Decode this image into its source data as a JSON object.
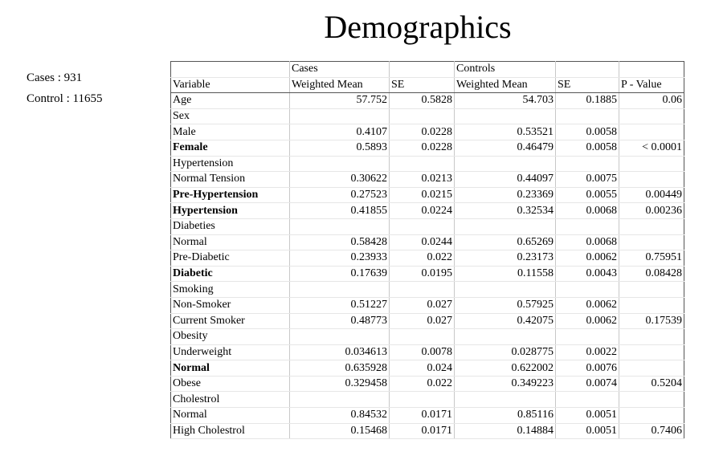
{
  "title": "Demographics",
  "counts": {
    "cases": "Cases : 931",
    "control": "Control : 11655"
  },
  "table": {
    "group_header": [
      "",
      "Cases",
      "",
      "Controls",
      "",
      ""
    ],
    "columns": [
      "Variable",
      "Weighted Mean",
      "SE",
      "Weighted Mean",
      "SE",
      "P - Value"
    ],
    "rows": [
      {
        "variable": "Age",
        "bold": false,
        "cells": [
          "57.752",
          "0.5828",
          "54.703",
          "0.1885",
          "0.06"
        ]
      },
      {
        "variable": "Sex",
        "bold": false,
        "cells": [
          "",
          "",
          "",
          "",
          ""
        ]
      },
      {
        "variable": "Male",
        "bold": false,
        "cells": [
          "0.4107",
          "0.0228",
          "0.53521",
          "0.0058",
          ""
        ]
      },
      {
        "variable": "Female",
        "bold": true,
        "cells": [
          "0.5893",
          "0.0228",
          "0.46479",
          "0.0058",
          "< 0.0001"
        ]
      },
      {
        "variable": "Hypertension",
        "bold": false,
        "cells": [
          "",
          "",
          "",
          "",
          ""
        ]
      },
      {
        "variable": "Normal Tension",
        "bold": false,
        "cells": [
          "0.30622",
          "0.0213",
          "0.44097",
          "0.0075",
          ""
        ]
      },
      {
        "variable": "Pre-Hypertension",
        "bold": true,
        "cells": [
          "0.27523",
          "0.0215",
          "0.23369",
          "0.0055",
          "0.00449"
        ]
      },
      {
        "variable": "Hypertension",
        "bold": true,
        "cells": [
          "0.41855",
          "0.0224",
          "0.32534",
          "0.0068",
          "0.00236"
        ]
      },
      {
        "variable": "Diabeties",
        "bold": false,
        "cells": [
          "",
          "",
          "",
          "",
          ""
        ]
      },
      {
        "variable": "Normal",
        "bold": false,
        "cells": [
          "0.58428",
          "0.0244",
          "0.65269",
          "0.0068",
          ""
        ]
      },
      {
        "variable": "Pre-Diabetic",
        "bold": false,
        "cells": [
          "0.23933",
          "0.022",
          "0.23173",
          "0.0062",
          "0.75951"
        ]
      },
      {
        "variable": "Diabetic",
        "bold": true,
        "cells": [
          "0.17639",
          "0.0195",
          "0.11558",
          "0.0043",
          "0.08428"
        ]
      },
      {
        "variable": "Smoking",
        "bold": false,
        "cells": [
          "",
          "",
          "",
          "",
          ""
        ]
      },
      {
        "variable": "Non-Smoker",
        "bold": false,
        "cells": [
          "0.51227",
          "0.027",
          "0.57925",
          "0.0062",
          ""
        ]
      },
      {
        "variable": "Current Smoker",
        "bold": false,
        "cells": [
          "0.48773",
          "0.027",
          "0.42075",
          "0.0062",
          "0.17539"
        ]
      },
      {
        "variable": "Obesity",
        "bold": false,
        "cells": [
          "",
          "",
          "",
          "",
          ""
        ]
      },
      {
        "variable": "Underweight",
        "bold": false,
        "cells": [
          "0.034613",
          "0.0078",
          "0.028775",
          "0.0022",
          ""
        ]
      },
      {
        "variable": "Normal",
        "bold": true,
        "cells": [
          "0.635928",
          "0.024",
          "0.622002",
          "0.0076",
          ""
        ]
      },
      {
        "variable": "Obese",
        "bold": false,
        "cells": [
          "0.329458",
          "0.022",
          "0.349223",
          "0.0074",
          "0.5204"
        ]
      },
      {
        "variable": "Cholestrol",
        "bold": false,
        "cells": [
          "",
          "",
          "",
          "",
          ""
        ]
      },
      {
        "variable": "Normal",
        "bold": false,
        "cells": [
          "0.84532",
          "0.0171",
          "0.85116",
          "0.0051",
          ""
        ]
      },
      {
        "variable": "High Cholestrol",
        "bold": false,
        "cells": [
          "0.15468",
          "0.0171",
          "0.14884",
          "0.0051",
          "0.7406"
        ]
      }
    ]
  }
}
